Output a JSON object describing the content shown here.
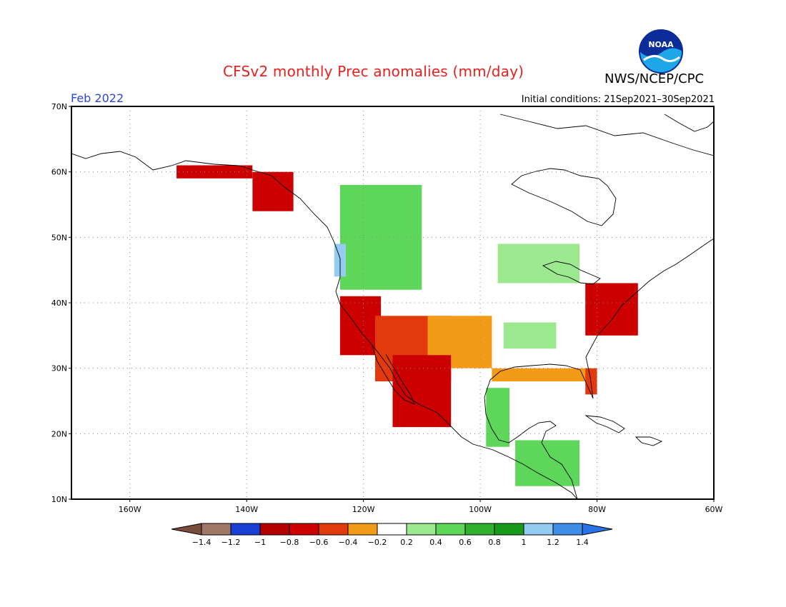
{
  "header": {
    "title": "CFSv2 monthly Prec anomalies (mm/day)",
    "agency": "NWS/NCEP/CPC",
    "month": "Feb 2022",
    "initial_conditions": "Initial conditions: 21Sep2021–30Sep2021"
  },
  "logo": {
    "text": "NOAA",
    "icon": "noaa-logo-icon"
  },
  "map": {
    "projection": "cylindrical",
    "lon_range": [
      -170,
      -60
    ],
    "lat_range": [
      10,
      70
    ],
    "grid": "dotted",
    "lon_ticks": [
      {
        "value": -160,
        "label": "160W"
      },
      {
        "value": -140,
        "label": "140W"
      },
      {
        "value": -120,
        "label": "120W"
      },
      {
        "value": -100,
        "label": "100W"
      },
      {
        "value": -80,
        "label": "80W"
      },
      {
        "value": -60,
        "label": "60W"
      }
    ],
    "lat_ticks": [
      {
        "value": 70,
        "label": "70N"
      },
      {
        "value": 60,
        "label": "60N"
      },
      {
        "value": 50,
        "label": "50N"
      },
      {
        "value": 40,
        "label": "40N"
      },
      {
        "value": 30,
        "label": "30N"
      },
      {
        "value": 20,
        "label": "20N"
      },
      {
        "value": 10,
        "label": "10N"
      }
    ]
  },
  "colorbar": {
    "labels": [
      "−1.4",
      "−1.2",
      "−1",
      "−0.8",
      "−0.6",
      "−0.4",
      "−0.2",
      "0.2",
      "0.4",
      "0.6",
      "0.8",
      "1",
      "1.2",
      "1.4"
    ],
    "colors": [
      "#a07868",
      "#1a3fd4",
      "#b40000",
      "#cd0000",
      "#e23a0c",
      "#f39b16",
      "#ffffff",
      "#9ce88e",
      "#5dd65a",
      "#2fb02f",
      "#1a9a1a",
      "#94cbf0",
      "#3e8ee8"
    ],
    "low_color": "#7a4c3c",
    "high_color": "#2a72e8"
  },
  "anomaly_regions": [
    {
      "name": "Alaska south coast",
      "value": -0.8,
      "color": "#cd0000",
      "lon": [
        -152,
        -139
      ],
      "lat": [
        59,
        61
      ]
    },
    {
      "name": "Alaska panhandle",
      "value": -0.8,
      "color": "#cd0000",
      "lon": [
        -139,
        -132
      ],
      "lat": [
        54,
        60
      ]
    },
    {
      "name": "Pacific Northwest",
      "value": 0.4,
      "color": "#5dd65a",
      "lon": [
        -124,
        -110
      ],
      "lat": [
        42,
        58
      ]
    },
    {
      "name": "Washington coast",
      "value": 1.2,
      "color": "#94cbf0",
      "lon": [
        -125,
        -123
      ],
      "lat": [
        44,
        49
      ]
    },
    {
      "name": "Upper Great Lakes",
      "value": 0.2,
      "color": "#9ce88e",
      "lon": [
        -97,
        -83
      ],
      "lat": [
        43,
        49
      ]
    },
    {
      "name": "California coast",
      "value": -0.8,
      "color": "#cd0000",
      "lon": [
        -124,
        -117
      ],
      "lat": [
        32,
        41
      ]
    },
    {
      "name": "Desert Southwest",
      "value": -0.6,
      "color": "#e23a0c",
      "lon": [
        -118,
        -105
      ],
      "lat": [
        28,
        38
      ]
    },
    {
      "name": "Southern Plains",
      "value": -0.4,
      "color": "#f39b16",
      "lon": [
        -109,
        -98
      ],
      "lat": [
        30,
        38
      ]
    },
    {
      "name": "Mid-South",
      "value": 0.2,
      "color": "#9ce88e",
      "lon": [
        -96,
        -87
      ],
      "lat": [
        33,
        37
      ]
    },
    {
      "name": "Mid-Atlantic",
      "value": -0.8,
      "color": "#cd0000",
      "lon": [
        -82,
        -73
      ],
      "lat": [
        35,
        43
      ]
    },
    {
      "name": "Gulf Coast",
      "value": -0.4,
      "color": "#f39b16",
      "lon": [
        -98,
        -81
      ],
      "lat": [
        28,
        30
      ]
    },
    {
      "name": "Florida",
      "value": -0.6,
      "color": "#e23a0c",
      "lon": [
        -82,
        -80
      ],
      "lat": [
        26,
        30
      ]
    },
    {
      "name": "Mexico Gulf coast",
      "value": 0.4,
      "color": "#5dd65a",
      "lon": [
        -99,
        -95
      ],
      "lat": [
        18,
        27
      ]
    },
    {
      "name": "Central America",
      "value": 0.4,
      "color": "#5dd65a",
      "lon": [
        -94,
        -83
      ],
      "lat": [
        12,
        19
      ]
    },
    {
      "name": "Baja / NW Mexico",
      "value": -0.8,
      "color": "#cd0000",
      "lon": [
        -115,
        -105
      ],
      "lat": [
        21,
        32
      ]
    }
  ]
}
